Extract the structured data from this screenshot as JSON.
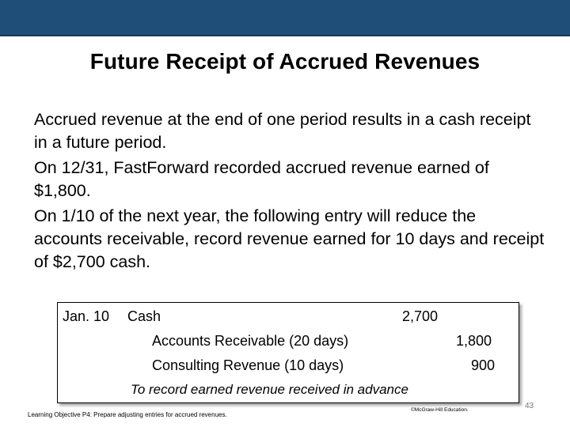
{
  "slide": {
    "title": "Future Receipt of Accrued Revenues",
    "paragraphs": [
      "Accrued revenue at the end of one period results in a cash receipt in a future period.",
      "On 12/31, FastForward recorded accrued revenue earned of $1,800.",
      "On 1/10 of the next year, the following entry will reduce the accounts receivable, record revenue earned for 10 days and receipt of $2,700 cash."
    ]
  },
  "journal_entry": {
    "date": "Jan. 10",
    "debit_account": "Cash",
    "debit_amount": "2,700",
    "credit_lines": [
      {
        "account": "Accounts Receivable (20 days)",
        "amount": "1,800"
      },
      {
        "account": "Consulting Revenue (10 days)",
        "amount": "900"
      }
    ],
    "memo": "To record earned revenue received in advance"
  },
  "footer": {
    "learning_objective": "Learning Objective P4: Prepare adjusting entries for accrued revenues.",
    "copyright": "©McGraw-Hill Education.",
    "page_number": "43"
  },
  "colors": {
    "top_bar": "#1f4e79"
  }
}
